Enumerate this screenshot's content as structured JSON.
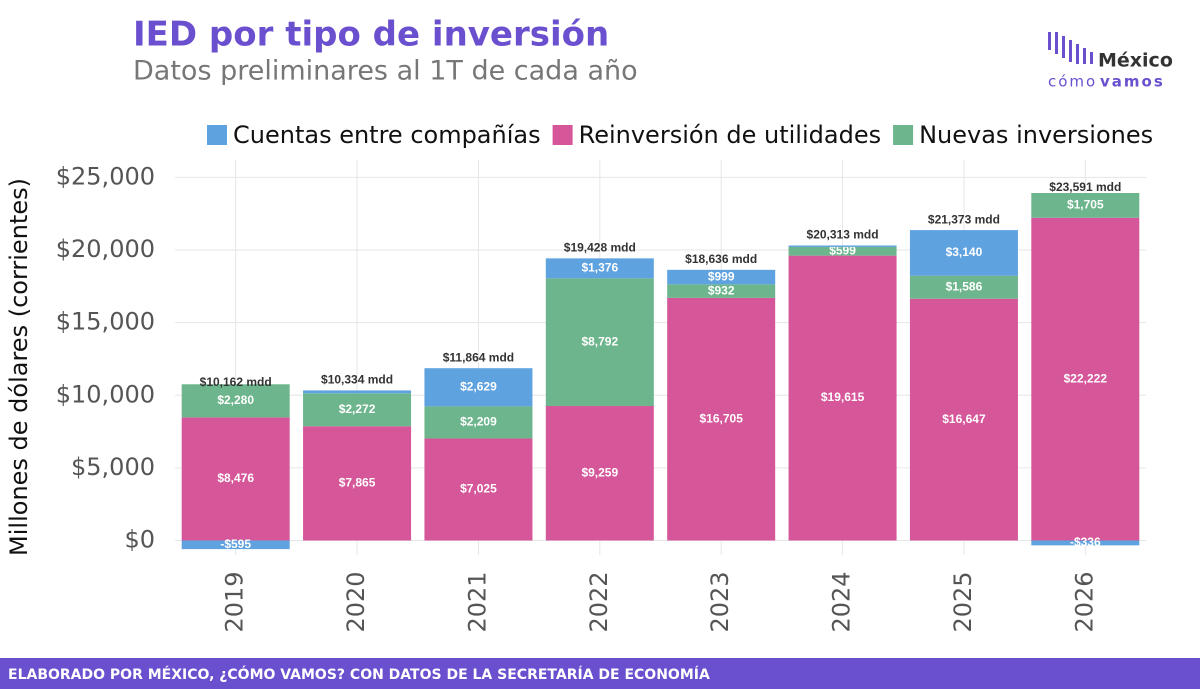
{
  "chart_data": {
    "type": "stacked-bar",
    "title": "IED por tipo de inversión",
    "subtitle": "Datos preliminares al 1T de cada año",
    "y_label": "Millones de dólares (corrientes)",
    "source": "ELABORADO POR MÉXICO, ¿CÓMO VAMOS? CON DATOS DE LA SECRETARÍA DE ECONOMÍA",
    "logo_top": "México",
    "logo_bottom_1": "cómo",
    "logo_bottom_2": "vamos",
    "categories": [
      "2019",
      "2020",
      "2021",
      "2022",
      "2023",
      "2024",
      "2025",
      "2026"
    ],
    "series": [
      {
        "name": "Reinversión de utilidades",
        "color": "#d6569a",
        "values": [
          8476,
          7865,
          7025,
          9259,
          16705,
          19615,
          16647,
          22222
        ],
        "value_labels": [
          "$8,476",
          "$7,865",
          "$7,025",
          "$9,259",
          "$16,705",
          "$19,615",
          "$16,647",
          "$22,222"
        ]
      },
      {
        "name": "Nuevas inversiones",
        "color": "#6db58c",
        "values": [
          2280,
          2272,
          2209,
          8792,
          932,
          599,
          1586,
          1705
        ],
        "value_labels": [
          "$2,280",
          "$2,272",
          "$2,209",
          "$8,792",
          "$932",
          "$599",
          "$1,586",
          "$1,705"
        ]
      },
      {
        "name": "Cuentas entre compañías",
        "color": "#5fa2e0",
        "values": [
          -595,
          197,
          2629,
          1376,
          999,
          99,
          3140,
          -336
        ],
        "value_labels": [
          "-$595",
          null,
          "$2,629",
          "$1,376",
          "$999",
          null,
          "$3,140",
          "-$336"
        ]
      }
    ],
    "legend_order": [
      2,
      0,
      1
    ],
    "totals": [
      10162,
      10334,
      11864,
      19428,
      18636,
      20313,
      21373,
      23591
    ],
    "total_labels": [
      "$10,162 mdd",
      "$10,334 mdd",
      "$11,864 mdd",
      "$19,428 mdd",
      "$18,636 mdd",
      "$20,313 mdd",
      "$21,373 mdd",
      "$23,591 mdd"
    ],
    "ylim": [
      -1000,
      26200
    ],
    "yticks": [
      {
        "value": 0,
        "label": "$0"
      },
      {
        "value": 5000,
        "label": "$5,000"
      },
      {
        "value": 10000,
        "label": "$10,000"
      },
      {
        "value": 15000,
        "label": "$15,000"
      },
      {
        "value": 20000,
        "label": "$20,000"
      },
      {
        "value": 25000,
        "label": "$25,000"
      }
    ],
    "grid": true
  }
}
